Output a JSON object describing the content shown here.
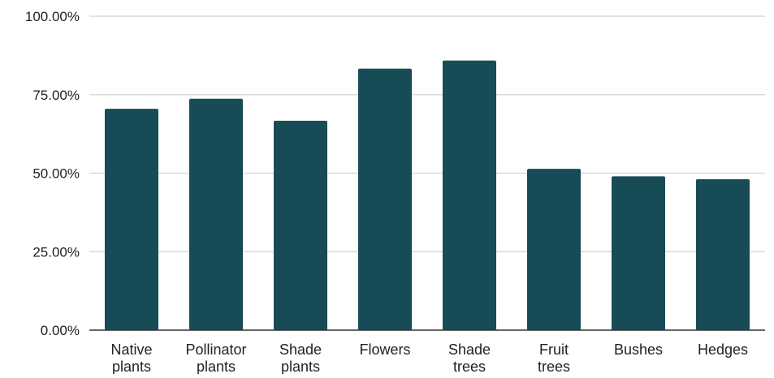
{
  "chart_data": {
    "type": "bar",
    "title": "",
    "xlabel": "",
    "ylabel": "",
    "categories": [
      [
        "Native",
        "plants"
      ],
      [
        "Pollinator",
        "plants"
      ],
      [
        "Shade",
        "plants"
      ],
      [
        "Flowers"
      ],
      [
        "Shade",
        "trees"
      ],
      [
        "Fruit",
        "trees"
      ],
      [
        "Bushes"
      ],
      [
        "Hedges"
      ]
    ],
    "values": [
      70.5,
      73.7,
      66.7,
      83.3,
      85.9,
      51.4,
      49.0,
      48.1
    ],
    "ylim": [
      0,
      100
    ],
    "y_ticks": [
      {
        "value": 0,
        "label": "0.00%"
      },
      {
        "value": 25,
        "label": "25.00%"
      },
      {
        "value": 50,
        "label": "50.00%"
      },
      {
        "value": 75,
        "label": "75.00%"
      },
      {
        "value": 100,
        "label": "100.00%"
      }
    ],
    "grid": true,
    "legend": "none",
    "colors": {
      "bar": "#174C57",
      "grid": "#D9D9D9",
      "axis": "#333333"
    }
  }
}
